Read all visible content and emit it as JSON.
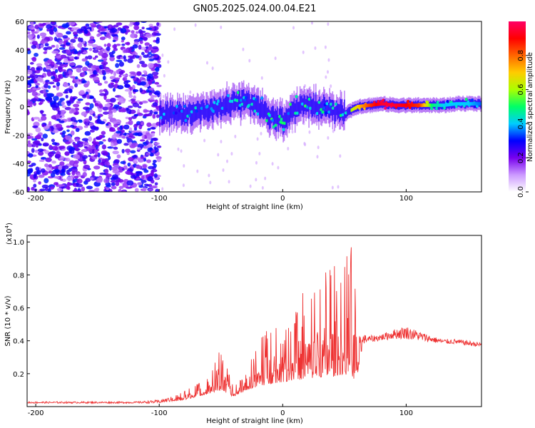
{
  "chart_data": [
    {
      "type": "heatmap",
      "title": "GN05.2025.024.00.04.E21",
      "xlabel": "Height of straight line (km)",
      "ylabel": "Frequency (Hz)",
      "xlim": [
        -207,
        161
      ],
      "ylim": [
        -60,
        60
      ],
      "xticks": [
        -200,
        -100,
        0,
        100
      ],
      "yticks": [
        -60,
        -40,
        -20,
        0,
        20,
        40,
        60
      ],
      "colorbar": {
        "label": "Normalized spectral amplitude",
        "range": [
          0,
          1
        ],
        "ticks": [
          0.0,
          0.2,
          0.4,
          0.6,
          0.8
        ],
        "colors": [
          "#ffffff",
          "#cc99ff",
          "#7700ee",
          "#0000ff",
          "#00ccff",
          "#00ff66",
          "#aaff00",
          "#ffcc00",
          "#ff6600",
          "#ff0000",
          "#ff0066"
        ]
      },
      "ridge": {
        "x": [
          -100,
          -90,
          -80,
          -70,
          -60,
          -50,
          -40,
          -30,
          -20,
          -10,
          0,
          10,
          20,
          30,
          40,
          50,
          60,
          70,
          80,
          90,
          100,
          110,
          120,
          130,
          140,
          150,
          160
        ],
        "frequency": [
          -5,
          -4,
          -6,
          -3,
          -2,
          0,
          2,
          3,
          0,
          -8,
          -10,
          -2,
          2,
          0,
          -3,
          -5,
          0,
          1,
          2,
          1,
          1,
          1,
          1,
          1,
          2,
          2,
          2
        ],
        "amplitude": [
          0.3,
          0.35,
          0.35,
          0.4,
          0.4,
          0.35,
          0.4,
          0.4,
          0.35,
          0.45,
          0.45,
          0.4,
          0.45,
          0.4,
          0.4,
          0.5,
          0.7,
          0.85,
          0.95,
          0.95,
          0.9,
          0.85,
          0.5,
          0.4,
          0.4,
          0.4,
          0.35
        ]
      }
    },
    {
      "type": "line",
      "title": "",
      "xlabel": "Height of straight line (km)",
      "ylabel": "SNR (10 * v/v)",
      "y_multiplier": "(x10",
      "y_multiplier_exp": "4",
      "y_multiplier_close": ")",
      "xlim": [
        -207,
        161
      ],
      "ylim": [
        0,
        1.04
      ],
      "xticks": [
        -200,
        -100,
        0,
        100
      ],
      "yticks": [
        0.2,
        0.4,
        0.6,
        0.8,
        1.0
      ],
      "series": [
        {
          "color": "#ee3333",
          "x": [
            -207,
            -180,
            -150,
            -120,
            -100,
            -90,
            -80,
            -70,
            -60,
            -50,
            -40,
            -30,
            -20,
            -10,
            0,
            10,
            20,
            30,
            40,
            50,
            55,
            60,
            65,
            70,
            80,
            90,
            100,
            110,
            120,
            130,
            140,
            150,
            161
          ],
          "baseline": [
            0.02,
            0.02,
            0.02,
            0.02,
            0.02,
            0.03,
            0.04,
            0.06,
            0.08,
            0.1,
            0.06,
            0.1,
            0.12,
            0.14,
            0.15,
            0.16,
            0.17,
            0.18,
            0.18,
            0.2,
            0.18,
            0.16,
            0.38,
            0.39,
            0.4,
            0.41,
            0.41,
            0.4,
            0.39,
            0.38,
            0.38,
            0.37,
            0.36
          ],
          "peak": [
            0.03,
            0.03,
            0.03,
            0.03,
            0.04,
            0.06,
            0.1,
            0.14,
            0.18,
            0.37,
            0.12,
            0.2,
            0.4,
            0.55,
            0.45,
            0.62,
            0.75,
            0.78,
            0.88,
            0.86,
            1.0,
            0.75,
            0.44,
            0.43,
            0.44,
            0.47,
            0.49,
            0.46,
            0.43,
            0.41,
            0.41,
            0.4,
            0.39
          ]
        }
      ]
    }
  ]
}
